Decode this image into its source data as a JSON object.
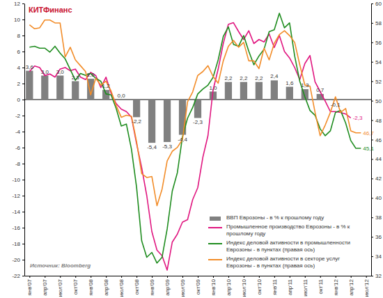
{
  "chart_data": {
    "type": "combo",
    "logo": "КИТФинанс",
    "source": "Источник: Bloomberg",
    "categories": [
      "янв'07",
      null,
      null,
      "апр'07",
      null,
      null,
      "июл'07",
      null,
      null,
      "окт'07",
      null,
      null,
      "янв'08",
      null,
      null,
      "апр'08",
      null,
      null,
      "июл'08",
      null,
      null,
      "окт'08",
      null,
      null,
      "янв'09",
      null,
      null,
      "апр'09",
      null,
      null,
      "июл'09",
      null,
      null,
      "окт'09",
      null,
      null,
      "янв'10",
      null,
      null,
      "апр'10",
      null,
      null,
      "июл'10",
      null,
      null,
      "окт'10",
      null,
      null,
      "янв'11",
      null,
      null,
      "апр'11",
      null,
      null,
      "июл'11",
      null,
      null,
      "окт'11",
      null,
      null,
      "янв'12",
      null,
      null,
      "апр'12",
      null,
      null,
      "июл'12"
    ],
    "ylim": [
      -22,
      12
    ],
    "yticks": [
      -22,
      -20,
      -18,
      -16,
      -14,
      -12,
      -10,
      -8,
      -6,
      -4,
      -2,
      0,
      2,
      4,
      6,
      8,
      10,
      12
    ],
    "y2lim": [
      32,
      60
    ],
    "y2ticks": [
      32,
      34,
      36,
      38,
      40,
      42,
      44,
      46,
      48,
      50,
      52,
      54,
      56,
      58,
      60
    ],
    "grid": false,
    "legend": "bottom-right",
    "series": [
      {
        "name": "ВВП Еврозоны - в % к прошлому году",
        "type": "bar",
        "color": "#808080",
        "data_labels": true,
        "values": [
          3.6,
          null,
          null,
          3.0,
          null,
          null,
          3.0,
          null,
          null,
          2.3,
          null,
          null,
          2.6,
          null,
          null,
          1.2,
          null,
          null,
          0.0,
          null,
          null,
          -2.2,
          null,
          null,
          -5.4,
          null,
          null,
          -5.3,
          null,
          null,
          -4.4,
          null,
          null,
          -2.3,
          null,
          null,
          1.0,
          null,
          null,
          2.2,
          null,
          null,
          2.2,
          null,
          null,
          2.2,
          null,
          null,
          2.4,
          null,
          null,
          1.6,
          null,
          null,
          1.3,
          null,
          null,
          0.7,
          null,
          null,
          -0.1,
          null,
          null,
          null,
          null,
          null,
          null
        ],
        "value_labels": [
          "3,6",
          null,
          null,
          "3,0",
          null,
          null,
          "3,0",
          null,
          null,
          "2,3",
          null,
          null,
          "2,6",
          null,
          null,
          "1,2",
          null,
          null,
          "0,0",
          null,
          null,
          "-2,2",
          null,
          null,
          "-5,4",
          null,
          null,
          "-5,3",
          null,
          null,
          "-4,4",
          null,
          null,
          "-2,3",
          null,
          null,
          "1,0",
          null,
          null,
          "2,2",
          null,
          null,
          "2,2",
          null,
          null,
          "2,2",
          null,
          null,
          "2,4",
          null,
          null,
          "1,6",
          null,
          null,
          "1,3",
          null,
          null,
          "0,7",
          null,
          null,
          "-0,1",
          null,
          null,
          null,
          null,
          null,
          null
        ]
      },
      {
        "name": "Промышленное производство Еврозоны - в % к прошлому году",
        "type": "line",
        "color": "#e0157f",
        "data_labels": true,
        "values": [
          3.5,
          4.2,
          4.0,
          3.0,
          3.2,
          2.8,
          3.8,
          4.0,
          3.6,
          3.8,
          2.8,
          2.5,
          3.4,
          3.0,
          1.5,
          2.8,
          0.8,
          -0.5,
          -1.2,
          -1.5,
          -2.2,
          -5.5,
          -8.5,
          -12.0,
          -16.5,
          -18.8,
          -19.5,
          -21.3,
          -17.8,
          -16.8,
          -15.3,
          -15.0,
          -12.5,
          -11.0,
          -7.2,
          -4.5,
          1.2,
          3.8,
          7.0,
          9.4,
          9.6,
          8.5,
          7.5,
          8.6,
          7.0,
          7.5,
          7.2,
          8.2,
          6.5,
          8.0,
          6.0,
          5.2,
          4.0,
          2.5,
          4.5,
          5.5,
          2.2,
          1.0,
          -0.2,
          -1.5,
          -1.5,
          -1.6,
          -1.8,
          -2.3,
          null,
          null,
          null
        ],
        "value_labels": [
          null,
          null,
          null,
          null,
          null,
          null,
          null,
          null,
          null,
          null,
          null,
          null,
          null,
          null,
          null,
          null,
          null,
          null,
          null,
          null,
          null,
          null,
          null,
          null,
          null,
          null,
          null,
          null,
          null,
          null,
          null,
          null,
          null,
          null,
          null,
          null,
          null,
          null,
          null,
          null,
          null,
          null,
          null,
          null,
          null,
          null,
          null,
          null,
          null,
          null,
          null,
          null,
          null,
          null,
          null,
          null,
          null,
          null,
          null,
          null,
          null,
          null,
          null,
          "-2,3",
          null,
          null,
          null
        ]
      },
      {
        "name": "Индекс деловой активности в промышленности Еврозоны - в пунктах (правая ось)",
        "type": "line",
        "axis": "y2",
        "color": "#1e8c1e",
        "data_labels": true,
        "values": [
          55.5,
          55.6,
          55.4,
          55.4,
          55.0,
          55.6,
          54.9,
          54.3,
          53.2,
          52.1,
          52.8,
          52.6,
          52.8,
          52.3,
          52.0,
          50.7,
          50.6,
          49.2,
          47.4,
          47.6,
          45.0,
          41.1,
          35.6,
          33.9,
          34.4,
          33.3,
          33.9,
          36.8,
          40.7,
          42.6,
          46.3,
          48.2,
          49.3,
          50.7,
          51.2,
          51.6,
          52.4,
          54.2,
          56.6,
          57.6,
          55.8,
          55.6,
          56.7,
          55.1,
          53.7,
          54.6,
          55.3,
          57.1,
          57.3,
          59.0,
          57.5,
          58.0,
          54.6,
          52.0,
          50.4,
          49.0,
          48.5,
          47.1,
          46.4,
          46.9,
          48.8,
          49.0,
          47.7,
          45.9,
          45.1,
          45.1,
          null
        ],
        "value_labels": [
          null,
          null,
          null,
          null,
          null,
          null,
          null,
          null,
          null,
          null,
          null,
          null,
          null,
          null,
          null,
          null,
          null,
          null,
          null,
          null,
          null,
          null,
          null,
          null,
          null,
          null,
          null,
          null,
          null,
          null,
          null,
          null,
          null,
          null,
          null,
          null,
          null,
          null,
          null,
          null,
          null,
          null,
          null,
          null,
          null,
          null,
          null,
          null,
          null,
          null,
          null,
          null,
          null,
          null,
          null,
          null,
          null,
          null,
          null,
          null,
          null,
          null,
          null,
          null,
          null,
          "45,1",
          null
        ]
      },
      {
        "name": "Индекс деловой активности в секторе услуг Еврозоны - в пунктах (правая ось)",
        "type": "line",
        "axis": "y2",
        "color": "#f28c28",
        "data_labels": true,
        "values": [
          57.8,
          57.4,
          57.5,
          58.3,
          58.3,
          58.0,
          58.0,
          54.5,
          55.5,
          54.2,
          53.6,
          53.0,
          50.6,
          52.3,
          51.6,
          52.0,
          51.0,
          49.5,
          48.3,
          48.5,
          48.4,
          45.8,
          42.5,
          42.1,
          42.2,
          39.2,
          40.9,
          43.8,
          44.8,
          45.2,
          46.0,
          49.9,
          50.9,
          52.6,
          53.0,
          53.6,
          52.5,
          51.8,
          54.1,
          55.6,
          56.2,
          55.5,
          56.0,
          54.1,
          54.1,
          53.3,
          55.4,
          54.2,
          55.9,
          56.8,
          57.2,
          56.7,
          56.0,
          53.7,
          51.6,
          51.5,
          48.8,
          46.4,
          47.5,
          48.8,
          50.4,
          48.8,
          49.2,
          46.9,
          46.7,
          46.7,
          null
        ],
        "value_labels": [
          null,
          null,
          null,
          null,
          null,
          null,
          null,
          null,
          null,
          null,
          null,
          null,
          null,
          null,
          null,
          null,
          null,
          null,
          null,
          null,
          null,
          null,
          null,
          null,
          null,
          null,
          null,
          null,
          null,
          null,
          null,
          null,
          null,
          null,
          null,
          null,
          null,
          null,
          null,
          null,
          null,
          null,
          null,
          null,
          null,
          null,
          null,
          null,
          null,
          null,
          null,
          null,
          null,
          null,
          null,
          null,
          null,
          null,
          null,
          null,
          null,
          null,
          null,
          null,
          null,
          "46,7",
          null
        ]
      }
    ]
  }
}
